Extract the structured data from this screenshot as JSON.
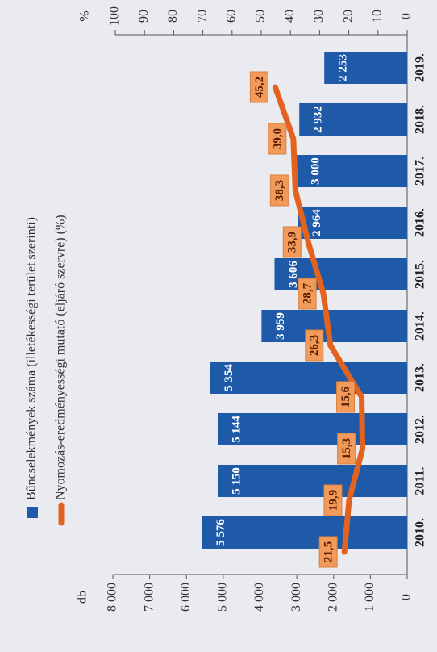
{
  "chart_data": {
    "type": "bar",
    "categories": [
      "2010.",
      "2011.",
      "2012.",
      "2013.",
      "2014.",
      "2015.",
      "2016.",
      "2017.",
      "2018.",
      "2019."
    ],
    "ylabel": "db",
    "y2label": "%",
    "series": [
      {
        "name": "Bűncselekmények száma (illetékességi terület szerinti)",
        "type": "bar",
        "color": "#1f5aa8",
        "values": [
          5576,
          5150,
          5144,
          5354,
          3959,
          3606,
          2964,
          3000,
          2932,
          2253
        ],
        "value_labels": [
          "5 576",
          "5 150",
          "5 144",
          "5 354",
          "3 959",
          "3 606",
          "2 964",
          "3 000",
          "2 932",
          "2 253"
        ]
      },
      {
        "name": "Nyomozás-eredményességi mutató (eljáró szervre) (%)",
        "type": "line",
        "axis": "y2",
        "color": "#e2621f",
        "values": [
          21.5,
          19.9,
          15.3,
          15.6,
          26.3,
          28.7,
          33.9,
          38.3,
          39.0,
          45.2
        ],
        "value_labels": [
          "21,5",
          "19,9",
          "15,3",
          "15,6",
          "26,3",
          "28,7",
          "33,9",
          "38,3",
          "39,0",
          "45,2"
        ]
      }
    ],
    "ylim": [
      0,
      8000
    ],
    "yticks": [
      0,
      {
        "value": 1000,
        "label": "1 000"
      },
      {
        "value": 2000,
        "label": "2 000"
      },
      {
        "value": 3000,
        "label": "3 000"
      },
      {
        "value": 4000,
        "label": "4 000"
      },
      {
        "value": 5000,
        "label": "5 000"
      },
      {
        "value": 6000,
        "label": "6 000"
      },
      {
        "value": 7000,
        "label": "7 000"
      },
      {
        "value": 8000,
        "label": "8 000"
      }
    ],
    "y2lim": [
      0,
      100
    ],
    "y2ticks": [
      0,
      10,
      20,
      30,
      40,
      50,
      60,
      70,
      80,
      90,
      100
    ],
    "grid": false
  }
}
